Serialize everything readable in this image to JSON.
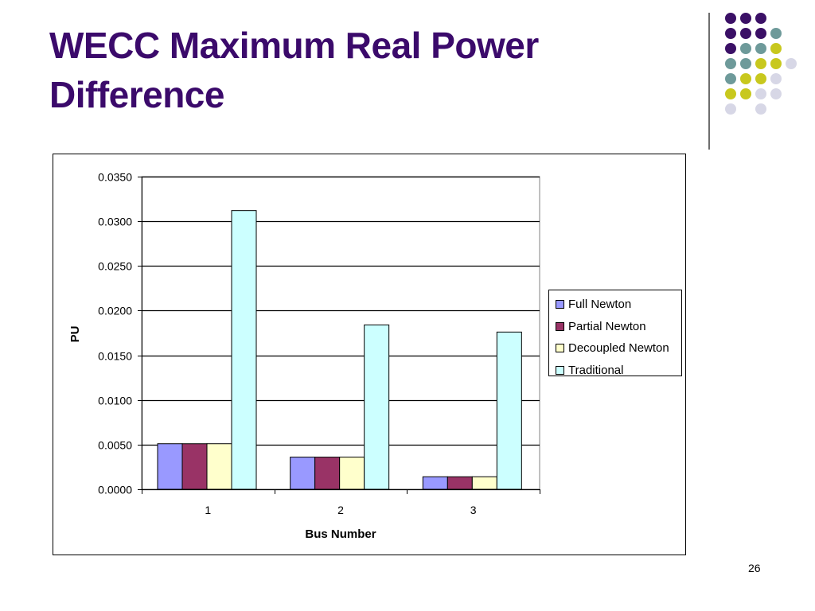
{
  "slide": {
    "title_line1": "WECC Maximum Real Power",
    "title_line2": "Difference",
    "page_number": "26"
  },
  "colors": {
    "title": "#3b0a6b",
    "dot_palette": [
      "#3b1066",
      "#6e9a9a",
      "#c8c81e",
      "#d7d7e6"
    ]
  },
  "chart_data": {
    "type": "bar",
    "categories": [
      "1",
      "2",
      "3"
    ],
    "series": [
      {
        "name": "Full Newton",
        "color": "#9999ff",
        "values": [
          0.0051,
          0.0036,
          0.0014
        ]
      },
      {
        "name": "Partial Newton",
        "color": "#993366",
        "values": [
          0.0051,
          0.0036,
          0.0014
        ]
      },
      {
        "name": "Decoupled Newton",
        "color": "#ffffcc",
        "values": [
          0.0051,
          0.0036,
          0.0014
        ]
      },
      {
        "name": "Traditional",
        "color": "#ccffff",
        "values": [
          0.0312,
          0.0184,
          0.0176
        ]
      }
    ],
    "y_ticks": [
      "0.0000",
      "0.0050",
      "0.0100",
      "0.0150",
      "0.0200",
      "0.0250",
      "0.0300",
      "0.0350"
    ],
    "ylim": [
      0,
      0.035
    ],
    "xlabel": "Bus Number",
    "ylabel": "PU",
    "grid": true,
    "legend_position": "right"
  }
}
